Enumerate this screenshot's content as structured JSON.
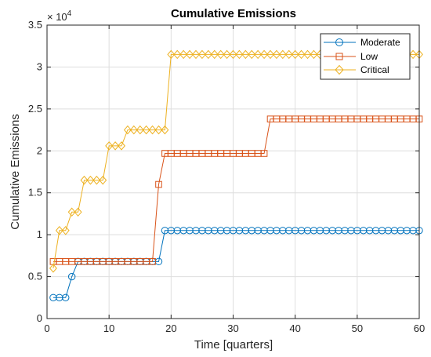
{
  "chart_data": {
    "type": "line",
    "title": "Cumulative Emissions",
    "xlabel": "Time [quarters]",
    "ylabel": "Cumulative Emissions",
    "y_multiplier_base": "× 10",
    "y_multiplier_exponent": "4",
    "xlim": [
      0,
      60
    ],
    "ylim": [
      0,
      3.5
    ],
    "y_scale_factor": 10000,
    "xticks": [
      0,
      10,
      20,
      30,
      40,
      50,
      60
    ],
    "yticks": [
      0,
      0.5,
      1,
      1.5,
      2,
      2.5,
      3,
      3.5
    ],
    "grid": true,
    "legend_position": "top-right",
    "series": [
      {
        "name": "Moderate",
        "color": "#0072BD",
        "marker": "circle",
        "x": [
          1,
          2,
          3,
          4,
          5,
          6,
          7,
          8,
          9,
          10,
          11,
          12,
          13,
          14,
          15,
          16,
          17,
          18,
          19,
          20,
          21,
          22,
          23,
          24,
          25,
          26,
          27,
          28,
          29,
          30,
          31,
          32,
          33,
          34,
          35,
          36,
          37,
          38,
          39,
          40,
          41,
          42,
          43,
          44,
          45,
          46,
          47,
          48,
          49,
          50,
          51,
          52,
          53,
          54,
          55,
          56,
          57,
          58,
          59,
          60
        ],
        "values": [
          0.25,
          0.25,
          0.25,
          0.5,
          0.68,
          0.68,
          0.68,
          0.68,
          0.68,
          0.68,
          0.68,
          0.68,
          0.68,
          0.68,
          0.68,
          0.68,
          0.68,
          0.68,
          1.05,
          1.05,
          1.05,
          1.05,
          1.05,
          1.05,
          1.05,
          1.05,
          1.05,
          1.05,
          1.05,
          1.05,
          1.05,
          1.05,
          1.05,
          1.05,
          1.05,
          1.05,
          1.05,
          1.05,
          1.05,
          1.05,
          1.05,
          1.05,
          1.05,
          1.05,
          1.05,
          1.05,
          1.05,
          1.05,
          1.05,
          1.05,
          1.05,
          1.05,
          1.05,
          1.05,
          1.05,
          1.05,
          1.05,
          1.05,
          1.05,
          1.05
        ]
      },
      {
        "name": "Low",
        "color": "#D95319",
        "marker": "square",
        "x": [
          1,
          2,
          3,
          4,
          5,
          6,
          7,
          8,
          9,
          10,
          11,
          12,
          13,
          14,
          15,
          16,
          17,
          18,
          19,
          20,
          21,
          22,
          23,
          24,
          25,
          26,
          27,
          28,
          29,
          30,
          31,
          32,
          33,
          34,
          35,
          36,
          37,
          38,
          39,
          40,
          41,
          42,
          43,
          44,
          45,
          46,
          47,
          48,
          49,
          50,
          51,
          52,
          53,
          54,
          55,
          56,
          57,
          58,
          59,
          60
        ],
        "values": [
          0.68,
          0.68,
          0.68,
          0.68,
          0.68,
          0.68,
          0.68,
          0.68,
          0.68,
          0.68,
          0.68,
          0.68,
          0.68,
          0.68,
          0.68,
          0.68,
          0.68,
          1.6,
          1.97,
          1.97,
          1.97,
          1.97,
          1.97,
          1.97,
          1.97,
          1.97,
          1.97,
          1.97,
          1.97,
          1.97,
          1.97,
          1.97,
          1.97,
          1.97,
          1.97,
          2.38,
          2.38,
          2.38,
          2.38,
          2.38,
          2.38,
          2.38,
          2.38,
          2.38,
          2.38,
          2.38,
          2.38,
          2.38,
          2.38,
          2.38,
          2.38,
          2.38,
          2.38,
          2.38,
          2.38,
          2.38,
          2.38,
          2.38,
          2.38,
          2.38
        ]
      },
      {
        "name": "Critical",
        "color": "#EDB120",
        "marker": "diamond",
        "x": [
          1,
          2,
          3,
          4,
          5,
          6,
          7,
          8,
          9,
          10,
          11,
          12,
          13,
          14,
          15,
          16,
          17,
          18,
          19,
          20,
          21,
          22,
          23,
          24,
          25,
          26,
          27,
          28,
          29,
          30,
          31,
          32,
          33,
          34,
          35,
          36,
          37,
          38,
          39,
          40,
          41,
          42,
          43,
          44,
          45,
          46,
          47,
          48,
          49,
          50,
          51,
          52,
          53,
          54,
          55,
          56,
          57,
          58,
          59,
          60
        ],
        "values": [
          0.6,
          1.05,
          1.05,
          1.27,
          1.27,
          1.65,
          1.65,
          1.65,
          1.65,
          2.06,
          2.06,
          2.06,
          2.25,
          2.25,
          2.25,
          2.25,
          2.25,
          2.25,
          2.25,
          3.15,
          3.15,
          3.15,
          3.15,
          3.15,
          3.15,
          3.15,
          3.15,
          3.15,
          3.15,
          3.15,
          3.15,
          3.15,
          3.15,
          3.15,
          3.15,
          3.15,
          3.15,
          3.15,
          3.15,
          3.15,
          3.15,
          3.15,
          3.15,
          3.15,
          3.15,
          3.15,
          3.15,
          3.15,
          3.15,
          3.15,
          3.15,
          3.15,
          3.15,
          3.15,
          3.15,
          3.15,
          3.15,
          3.15,
          3.15,
          3.15
        ]
      }
    ]
  }
}
